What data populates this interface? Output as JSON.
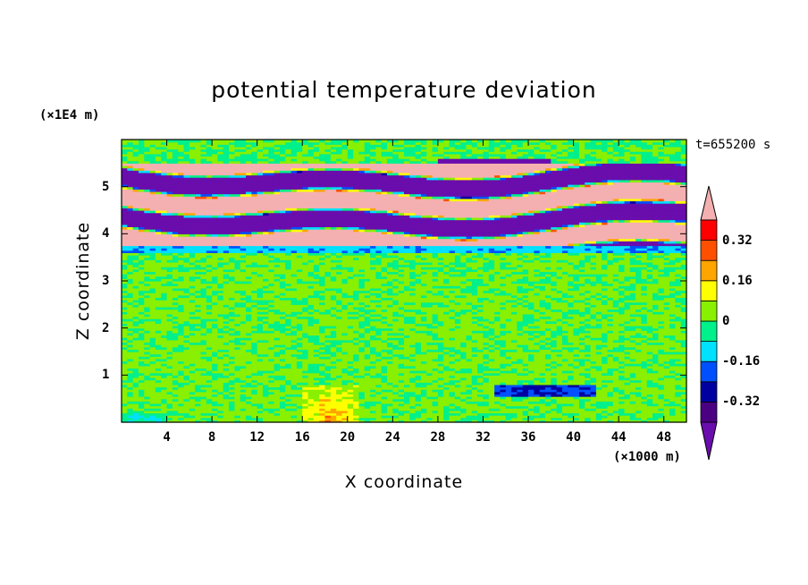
{
  "title": "potential temperature deviation",
  "time_stamp": "t=655200 s",
  "colors": {
    "below_min": "#6a0dad",
    "levels": [
      "#4b0082",
      "#0000a0",
      "#0050ff",
      "#00e0ff",
      "#00f08c",
      "#88f000",
      "#ffff00",
      "#ffa500",
      "#ff5000",
      "#ff0000"
    ],
    "above_max": "#f4b0b0"
  },
  "chart_data": {
    "type": "heatmap",
    "title": "potential temperature deviation",
    "xlabel": "X coordinate",
    "ylabel": "Z coordinate",
    "x_unit": "(×1000 m)",
    "y_unit": "(×1E4 m)",
    "xlim": [
      0,
      50
    ],
    "ylim": [
      0,
      6
    ],
    "x_ticks": [
      "4",
      "8",
      "12",
      "16",
      "20",
      "24",
      "28",
      "32",
      "36",
      "40",
      "44",
      "48"
    ],
    "y_ticks": [
      "1",
      "2",
      "3",
      "4",
      "5"
    ],
    "colorbar": {
      "levels": [
        -0.4,
        -0.32,
        -0.24,
        -0.16,
        -0.08,
        0,
        0.08,
        0.16,
        0.24,
        0.32,
        0.4
      ],
      "labels": [
        "0.32",
        "0.16",
        "0",
        "-0.16",
        "-0.32"
      ]
    },
    "field_summary": [
      {
        "z_range": [
          0.0,
          0.8
        ],
        "pattern": "near-zero with warm plume near x=18",
        "value": 0.1
      },
      {
        "z_range": [
          0.8,
          3.6
        ],
        "pattern": "near-zero (greens)",
        "value": 0.0
      },
      {
        "z_range": [
          3.6,
          3.75
        ],
        "pattern": "thin cool band",
        "value": -0.15
      },
      {
        "z_range": [
          3.75,
          5.5
        ],
        "pattern": "alternating strong warm / cold layers",
        "value": "±0.4+"
      },
      {
        "z_range": [
          5.5,
          6.0
        ],
        "pattern": "near-zero",
        "value": 0.0
      }
    ]
  }
}
